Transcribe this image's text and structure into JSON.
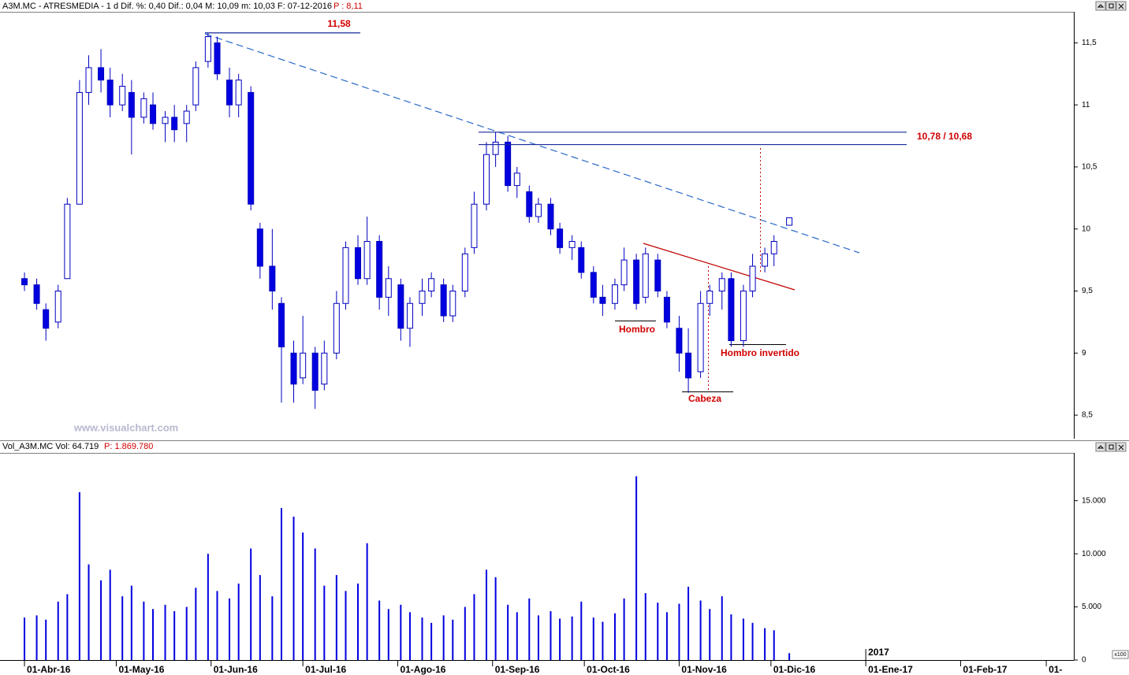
{
  "chart_data": [
    {
      "type": "candlestick",
      "title": "A3M.MC - ATRESMEDIA - 1 d  Dif. %: 0,40  Dif.: 0,04  M: 10,09  m: 10,03  F: 07-12-2016",
      "subtitle": "P : 8,11",
      "watermark": "www.visualchart.com",
      "x": [
        "2016-04-01",
        "2016-04-05",
        "2016-04-08",
        "2016-04-12",
        "2016-04-15",
        "2016-04-19",
        "2016-04-22",
        "2016-04-26",
        "2016-04-29",
        "2016-05-03",
        "2016-05-06",
        "2016-05-10",
        "2016-05-13",
        "2016-05-17",
        "2016-05-20",
        "2016-05-24",
        "2016-05-27",
        "2016-05-31",
        "2016-06-03",
        "2016-06-07",
        "2016-06-10",
        "2016-06-14",
        "2016-06-17",
        "2016-06-21",
        "2016-06-24",
        "2016-06-28",
        "2016-07-01",
        "2016-07-05",
        "2016-07-08",
        "2016-07-12",
        "2016-07-15",
        "2016-07-19",
        "2016-07-22",
        "2016-07-26",
        "2016-07-29",
        "2016-08-02",
        "2016-08-05",
        "2016-08-09",
        "2016-08-12",
        "2016-08-16",
        "2016-08-19",
        "2016-08-23",
        "2016-08-26",
        "2016-08-30",
        "2016-09-02",
        "2016-09-06",
        "2016-09-09",
        "2016-09-13",
        "2016-09-16",
        "2016-09-20",
        "2016-09-23",
        "2016-09-27",
        "2016-09-30",
        "2016-10-04",
        "2016-10-07",
        "2016-10-11",
        "2016-10-14",
        "2016-10-18",
        "2016-10-21",
        "2016-10-25",
        "2016-10-28",
        "2016-11-01",
        "2016-11-04",
        "2016-11-08",
        "2016-11-11",
        "2016-11-15",
        "2016-11-18",
        "2016-11-22",
        "2016-11-25",
        "2016-11-29",
        "2016-12-02",
        "2016-12-07"
      ],
      "open": [
        9.6,
        9.55,
        9.35,
        9.25,
        9.6,
        10.2,
        11.1,
        11.3,
        11.2,
        11.0,
        11.1,
        10.9,
        11.0,
        10.85,
        10.9,
        10.85,
        11.0,
        11.35,
        11.5,
        11.2,
        11.0,
        11.1,
        10.0,
        9.7,
        9.4,
        9.0,
        8.8,
        9.0,
        8.75,
        9.0,
        9.4,
        9.85,
        9.6,
        9.9,
        9.45,
        9.55,
        9.2,
        9.4,
        9.5,
        9.55,
        9.3,
        9.5,
        9.85,
        10.2,
        10.6,
        10.7,
        10.35,
        10.3,
        10.1,
        10.2,
        10.0,
        9.85,
        9.85,
        9.65,
        9.45,
        9.4,
        9.55,
        9.75,
        9.45,
        9.75,
        9.45,
        9.2,
        9.0,
        8.85,
        9.4,
        9.5,
        9.6,
        9.1,
        9.5,
        9.7,
        9.8,
        10.03
      ],
      "high": [
        9.65,
        9.6,
        9.4,
        9.55,
        10.25,
        11.2,
        11.4,
        11.45,
        11.3,
        11.25,
        11.2,
        11.1,
        11.1,
        10.95,
        11.0,
        11.0,
        11.35,
        11.58,
        11.55,
        11.3,
        11.25,
        11.15,
        10.05,
        10.0,
        9.45,
        9.1,
        9.3,
        9.05,
        9.1,
        9.5,
        9.9,
        9.95,
        10.1,
        9.95,
        9.7,
        9.6,
        9.45,
        9.6,
        9.65,
        9.6,
        9.55,
        9.85,
        10.3,
        10.7,
        10.78,
        10.75,
        10.5,
        10.35,
        10.25,
        10.25,
        10.05,
        9.95,
        9.9,
        9.7,
        9.55,
        9.6,
        9.85,
        9.8,
        9.85,
        9.8,
        9.5,
        9.3,
        9.2,
        9.5,
        9.55,
        9.65,
        9.65,
        9.55,
        9.8,
        9.85,
        9.95,
        10.09
      ],
      "low": [
        9.5,
        9.35,
        9.1,
        9.2,
        9.6,
        10.2,
        11.0,
        11.1,
        10.9,
        10.95,
        10.6,
        10.85,
        10.8,
        10.7,
        10.7,
        10.7,
        10.95,
        11.3,
        11.2,
        10.9,
        10.9,
        10.15,
        9.6,
        9.35,
        8.6,
        8.6,
        8.75,
        8.55,
        8.7,
        8.95,
        9.35,
        9.55,
        9.55,
        9.35,
        9.3,
        9.1,
        9.05,
        9.3,
        9.45,
        9.25,
        9.25,
        9.45,
        9.8,
        10.15,
        10.5,
        10.3,
        10.25,
        10.05,
        10.05,
        9.95,
        9.8,
        9.75,
        9.6,
        9.4,
        9.3,
        9.35,
        9.5,
        9.35,
        9.4,
        9.45,
        9.2,
        8.85,
        8.68,
        8.8,
        9.3,
        9.35,
        9.05,
        9.05,
        9.45,
        9.65,
        9.7,
        10.03
      ],
      "close": [
        9.55,
        9.4,
        9.2,
        9.5,
        10.2,
        11.1,
        11.3,
        11.2,
        11.0,
        11.15,
        10.9,
        11.05,
        10.85,
        10.9,
        10.8,
        10.95,
        11.3,
        11.55,
        11.25,
        11.0,
        11.2,
        10.2,
        9.7,
        9.5,
        9.05,
        8.75,
        9.0,
        8.7,
        9.0,
        9.4,
        9.85,
        9.6,
        9.9,
        9.45,
        9.6,
        9.2,
        9.4,
        9.5,
        9.6,
        9.3,
        9.5,
        9.8,
        10.2,
        10.6,
        10.7,
        10.35,
        10.45,
        10.1,
        10.2,
        10.0,
        9.85,
        9.9,
        9.65,
        9.45,
        9.4,
        9.55,
        9.75,
        9.4,
        9.8,
        9.5,
        9.25,
        9.0,
        8.8,
        9.4,
        9.5,
        9.6,
        9.1,
        9.5,
        9.7,
        9.8,
        9.9,
        10.09
      ],
      "up_color": "#ffffff",
      "down_color": "#0000e0",
      "outline_color": "#0000c0",
      "xlim": [
        "2016-03-24",
        "2017-03-10"
      ],
      "ylim": [
        8.31,
        11.75
      ],
      "yticks": [
        {
          "value": 8.5,
          "label": "8,5"
        },
        9,
        {
          "value": 9.5,
          "label": "9,5"
        },
        10,
        {
          "value": 10.5,
          "label": "10,5"
        },
        11,
        {
          "value": 11.5,
          "label": "11,5"
        }
      ],
      "levels": [
        {
          "value": 11.58,
          "label": "11,58"
        },
        {
          "value": 10.78,
          "label": "10,78 / 10,68"
        },
        {
          "value": 10.68
        }
      ],
      "annotations": [
        "Hombro",
        "Cabeza",
        "Hombro invertido"
      ]
    },
    {
      "type": "bar",
      "title": "Vol_A3M.MC  Vol: 64.719",
      "subtitle": "P: 1.869.780",
      "unit_label": "x100",
      "color": "#0000e0",
      "x": [
        "2016-04-01",
        "2016-04-05",
        "2016-04-08",
        "2016-04-12",
        "2016-04-15",
        "2016-04-19",
        "2016-04-22",
        "2016-04-26",
        "2016-04-29",
        "2016-05-03",
        "2016-05-06",
        "2016-05-10",
        "2016-05-13",
        "2016-05-17",
        "2016-05-20",
        "2016-05-24",
        "2016-05-27",
        "2016-05-31",
        "2016-06-03",
        "2016-06-07",
        "2016-06-10",
        "2016-06-14",
        "2016-06-17",
        "2016-06-21",
        "2016-06-24",
        "2016-06-28",
        "2016-07-01",
        "2016-07-05",
        "2016-07-08",
        "2016-07-12",
        "2016-07-15",
        "2016-07-19",
        "2016-07-22",
        "2016-07-26",
        "2016-07-29",
        "2016-08-02",
        "2016-08-05",
        "2016-08-09",
        "2016-08-12",
        "2016-08-16",
        "2016-08-19",
        "2016-08-23",
        "2016-08-26",
        "2016-08-30",
        "2016-09-02",
        "2016-09-06",
        "2016-09-09",
        "2016-09-13",
        "2016-09-16",
        "2016-09-20",
        "2016-09-23",
        "2016-09-27",
        "2016-09-30",
        "2016-10-04",
        "2016-10-07",
        "2016-10-11",
        "2016-10-14",
        "2016-10-18",
        "2016-10-21",
        "2016-10-25",
        "2016-10-28",
        "2016-11-01",
        "2016-11-04",
        "2016-11-08",
        "2016-11-11",
        "2016-11-15",
        "2016-11-18",
        "2016-11-22",
        "2016-11-25",
        "2016-11-29",
        "2016-12-02",
        "2016-12-07"
      ],
      "values": [
        4000,
        4200,
        3800,
        5500,
        6200,
        15800,
        9000,
        7500,
        8500,
        6000,
        7000,
        5500,
        4800,
        5200,
        4600,
        5000,
        6800,
        10000,
        6500,
        5800,
        7200,
        10500,
        8000,
        6000,
        14300,
        13500,
        12000,
        10500,
        7000,
        8000,
        6500,
        7200,
        11000,
        5600,
        4800,
        5200,
        4500,
        4000,
        3500,
        4200,
        3800,
        5000,
        6200,
        8500,
        7800,
        5200,
        4500,
        5800,
        4200,
        4600,
        3900,
        4100,
        5500,
        4000,
        3600,
        4400,
        5800,
        17300,
        6300,
        5400,
        4500,
        5300,
        6900,
        5600,
        4800,
        6000,
        4300,
        3900,
        3500,
        3000,
        2800,
        647
      ],
      "xlim": [
        "2016-03-24",
        "2017-03-10"
      ],
      "ylim": [
        0,
        19500
      ],
      "yticks": [
        0,
        {
          "value": 5000,
          "label": "5.000"
        },
        {
          "value": 10000,
          "label": "10.000"
        },
        {
          "value": 15000,
          "label": "15.000"
        }
      ],
      "xticks": [
        {
          "value": "2016-04-01",
          "label": "01-Abr-16"
        },
        {
          "value": "2016-05-01",
          "label": "01-May-16"
        },
        {
          "value": "2016-06-01",
          "label": "01-Jun-16"
        },
        {
          "value": "2016-07-01",
          "label": "01-Jul-16"
        },
        {
          "value": "2016-08-01",
          "label": "01-Ago-16"
        },
        {
          "value": "2016-09-01",
          "label": "01-Sep-16"
        },
        {
          "value": "2016-10-01",
          "label": "01-Oct-16"
        },
        {
          "value": "2016-11-01",
          "label": "01-Nov-16"
        },
        {
          "value": "2016-12-01",
          "label": "01-Dic-16"
        },
        {
          "value": "2017-01-01",
          "label": "01-Ene-17"
        },
        {
          "value": "2017-02-01",
          "label": "01-Feb-17"
        },
        {
          "value": "2017-03-01",
          "label": "01-"
        }
      ],
      "year_mark": {
        "value": "2017-01-01",
        "label": "2017"
      }
    }
  ]
}
